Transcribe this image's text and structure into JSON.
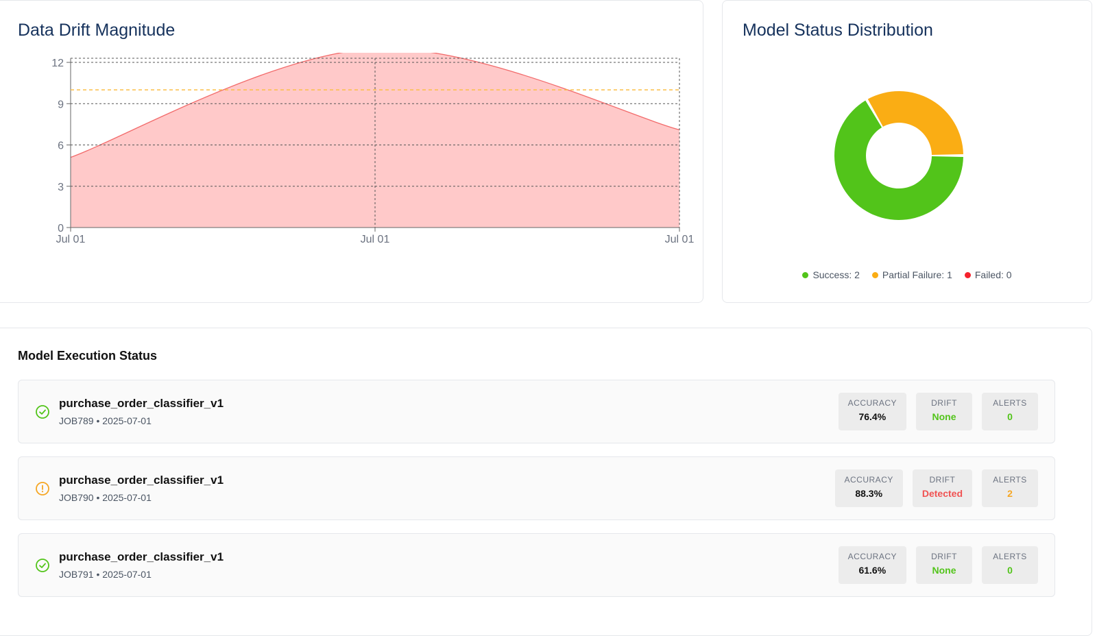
{
  "drift_panel": {
    "title": "Data Drift Magnitude"
  },
  "status_panel": {
    "title": "Model Status Distribution",
    "legend": [
      {
        "label": "Success: 2",
        "color": "#52c41a"
      },
      {
        "label": "Partial Failure: 1",
        "color": "#faad14"
      },
      {
        "label": "Failed: 0",
        "color": "#f5222d"
      }
    ]
  },
  "chart_data": [
    {
      "type": "area",
      "title": "Data Drift Magnitude",
      "x": [
        "Jul 01",
        "Jul 01",
        "Jul 01"
      ],
      "series": [
        {
          "values": [
            5.1,
            13.0,
            7.1
          ],
          "color": "#f26b6b",
          "fill": "#ffc9c9"
        }
      ],
      "threshold": {
        "value": 10,
        "color": "#fbbf47",
        "style": "dashed"
      },
      "ylim": [
        0,
        12
      ],
      "yticks": [
        0,
        3,
        6,
        9,
        12
      ],
      "grid": true
    },
    {
      "type": "pie",
      "title": "Model Status Distribution",
      "categories": [
        "Success",
        "Partial Failure",
        "Failed"
      ],
      "values": [
        2,
        1,
        0
      ],
      "colors": [
        "#52c41a",
        "#faad14",
        "#f5222d"
      ],
      "donut": true
    }
  ],
  "execution": {
    "title": "Model Execution Status",
    "labels": {
      "accuracy": "ACCURACY",
      "drift": "DRIFT",
      "alerts": "ALERTS"
    },
    "rows": [
      {
        "name": "purchase_order_classifier_v1",
        "meta": "JOB789 • 2025-07-01",
        "status_icon": "check-circle-icon",
        "accuracy": "76.4%",
        "drift": "None",
        "alerts": "0"
      },
      {
        "name": "purchase_order_classifier_v1",
        "meta": "JOB790 • 2025-07-01",
        "status_icon": "warning-circle-icon",
        "accuracy": "88.3%",
        "drift": "Detected",
        "alerts": "2"
      },
      {
        "name": "purchase_order_classifier_v1",
        "meta": "JOB791 • 2025-07-01",
        "status_icon": "check-circle-icon",
        "accuracy": "61.6%",
        "drift": "None",
        "alerts": "0"
      }
    ]
  }
}
